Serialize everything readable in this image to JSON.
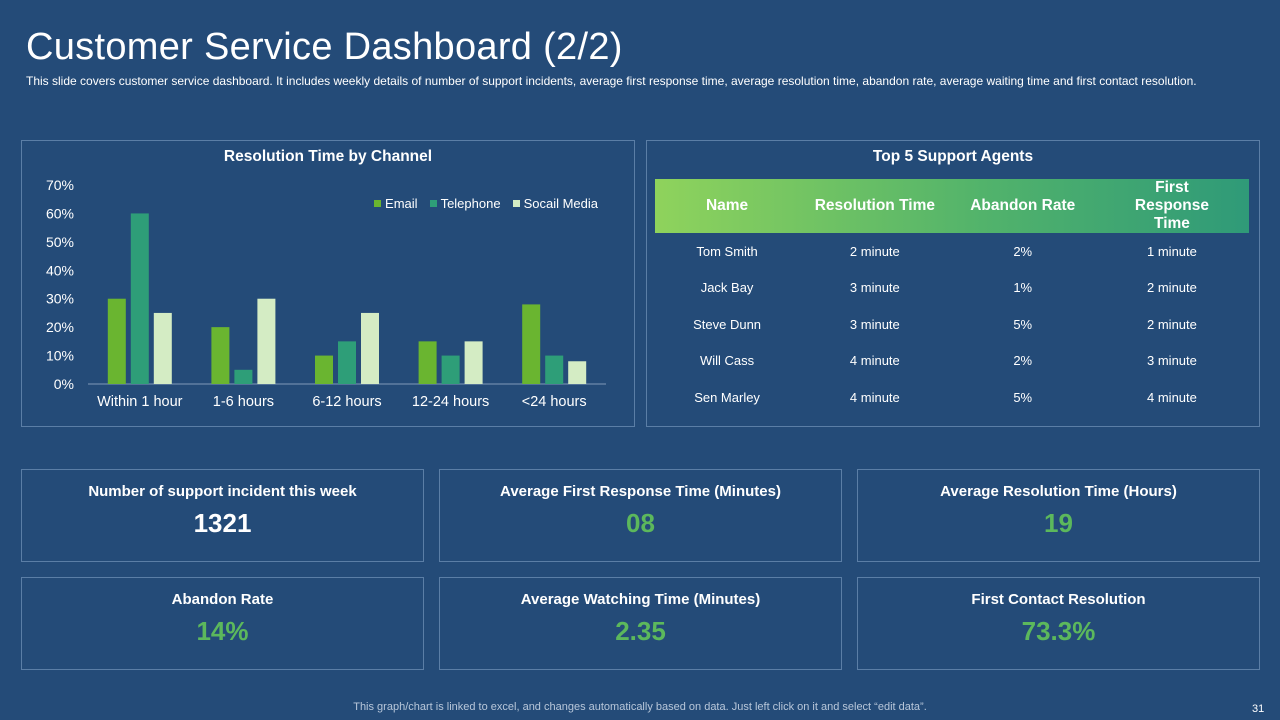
{
  "header": {
    "title": "Customer Service Dashboard (2/2)",
    "subtitle": "This slide covers customer service dashboard. It includes weekly details of number of support incidents, average first response time, average  resolution time, abandon rate, average  waiting time and first contact resolution."
  },
  "chart_panel": {
    "title": "Resolution Time by Channel"
  },
  "chart_data": {
    "type": "bar",
    "title": "Resolution Time by Channel",
    "categories": [
      "Within 1 hour",
      "1-6 hours",
      "6-12 hours",
      "12-24 hours",
      "<24 hours"
    ],
    "series": [
      {
        "name": "Email",
        "values": [
          30,
          20,
          10,
          15,
          28
        ],
        "color": "#6ab530"
      },
      {
        "name": "Telephone",
        "values": [
          60,
          5,
          15,
          10,
          10
        ],
        "color": "#2e9e78"
      },
      {
        "name": "Socail Media",
        "values": [
          25,
          30,
          25,
          15,
          8
        ],
        "color": "#d4ecc4"
      }
    ],
    "y_ticks": [
      "0%",
      "10%",
      "20%",
      "30%",
      "40%",
      "50%",
      "60%",
      "70%"
    ],
    "ylim": [
      0,
      70
    ],
    "legend_position": "top-right",
    "grid": false
  },
  "agents_panel": {
    "title": "Top 5 Support Agents",
    "columns": [
      "Name",
      "Resolution Time",
      "Abandon Rate",
      "First Response Time"
    ],
    "rows": [
      [
        "Tom Smith",
        "2 minute",
        "2%",
        "1 minute"
      ],
      [
        "Jack Bay",
        "3 minute",
        "1%",
        "2 minute"
      ],
      [
        "Steve Dunn",
        "3 minute",
        "5%",
        "2 minute"
      ],
      [
        "Will Cass",
        "4 minute",
        "2%",
        "3 minute"
      ],
      [
        "Sen Marley",
        "4 minute",
        "5%",
        "4 minute"
      ]
    ]
  },
  "kpis": [
    {
      "label": "Number of support incident this week",
      "value": "1321",
      "color": "#ffffff"
    },
    {
      "label": "Average First Response Time (Minutes)",
      "value": "08",
      "color": "#5cb85c"
    },
    {
      "label": "Average Resolution Time (Hours)",
      "value": "19",
      "color": "#5cb85c"
    },
    {
      "label": "Abandon  Rate",
      "value": "14%",
      "color": "#5cb85c"
    },
    {
      "label": "Average Watching  Time (Minutes)",
      "value": "2.35",
      "color": "#5cb85c"
    },
    {
      "label": "First Contact Resolution",
      "value": "73.3%",
      "color": "#5cb85c"
    }
  ],
  "footer": {
    "note": "This graph/chart is linked to excel,  and changes automatically based on data. Just left click on it and select “edit data”.",
    "page_number": "31"
  }
}
